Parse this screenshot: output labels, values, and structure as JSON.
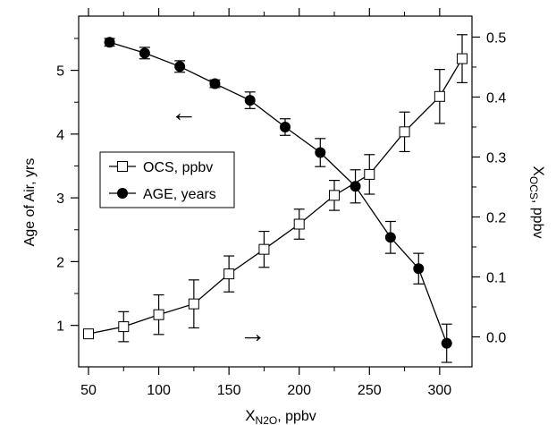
{
  "chart_data": {
    "type": "line",
    "xlabel": "X",
    "xlabel_sub": "N2O",
    "xlabel_unit": ", ppbv",
    "ylabel_left": "Age of Air, yrs",
    "ylabel_right": "X",
    "ylabel_right_sub": "OCS",
    "ylabel_right_unit": ", ppbv",
    "xlim": [
      43,
      323
    ],
    "ylim_left": [
      0.35,
      5.85
    ],
    "ylim_right": [
      -0.05,
      0.535
    ],
    "x_ticks": [
      50,
      100,
      150,
      200,
      250,
      300
    ],
    "x_ticks_minor": [
      75,
      125,
      175,
      225,
      275
    ],
    "y_left_ticks": [
      1,
      2,
      3,
      4,
      5
    ],
    "y_right_ticks": [
      0.0,
      0.1,
      0.2,
      0.3,
      0.4,
      0.5
    ],
    "y_right_tick_labels": [
      "0.0",
      "0.1",
      "0.2",
      "0.3",
      "0.4",
      "0.5"
    ],
    "grid": false,
    "legend": "left-middle",
    "series": [
      {
        "name": "OCS, ppbv",
        "axis": "right",
        "marker": "open-square",
        "x": [
          50,
          75,
          100,
          125,
          150,
          175,
          200,
          225,
          250,
          275,
          300,
          316
        ],
        "y": [
          0.005,
          0.017,
          0.037,
          0.055,
          0.105,
          0.146,
          0.188,
          0.236,
          0.271,
          0.342,
          0.401,
          0.464
        ],
        "err": [
          0.005,
          0.025,
          0.033,
          0.04,
          0.03,
          0.03,
          0.025,
          0.025,
          0.033,
          0.033,
          0.045,
          0.04
        ]
      },
      {
        "name": "AGE, years",
        "axis": "left",
        "marker": "filled-circle",
        "x": [
          65,
          90,
          115,
          140,
          165,
          190,
          215,
          240,
          265,
          285,
          305
        ],
        "y": [
          5.44,
          5.27,
          5.06,
          4.79,
          4.53,
          4.11,
          3.71,
          3.18,
          2.38,
          1.89,
          0.72
        ],
        "err": [
          0.06,
          0.09,
          0.09,
          0.06,
          0.13,
          0.13,
          0.22,
          0.26,
          0.25,
          0.24,
          0.3
        ]
      }
    ],
    "annotations": [
      {
        "text": "←",
        "x": 118,
        "y_left": 4.33
      },
      {
        "text": "→",
        "x": 167,
        "y_left": 0.86
      }
    ]
  }
}
